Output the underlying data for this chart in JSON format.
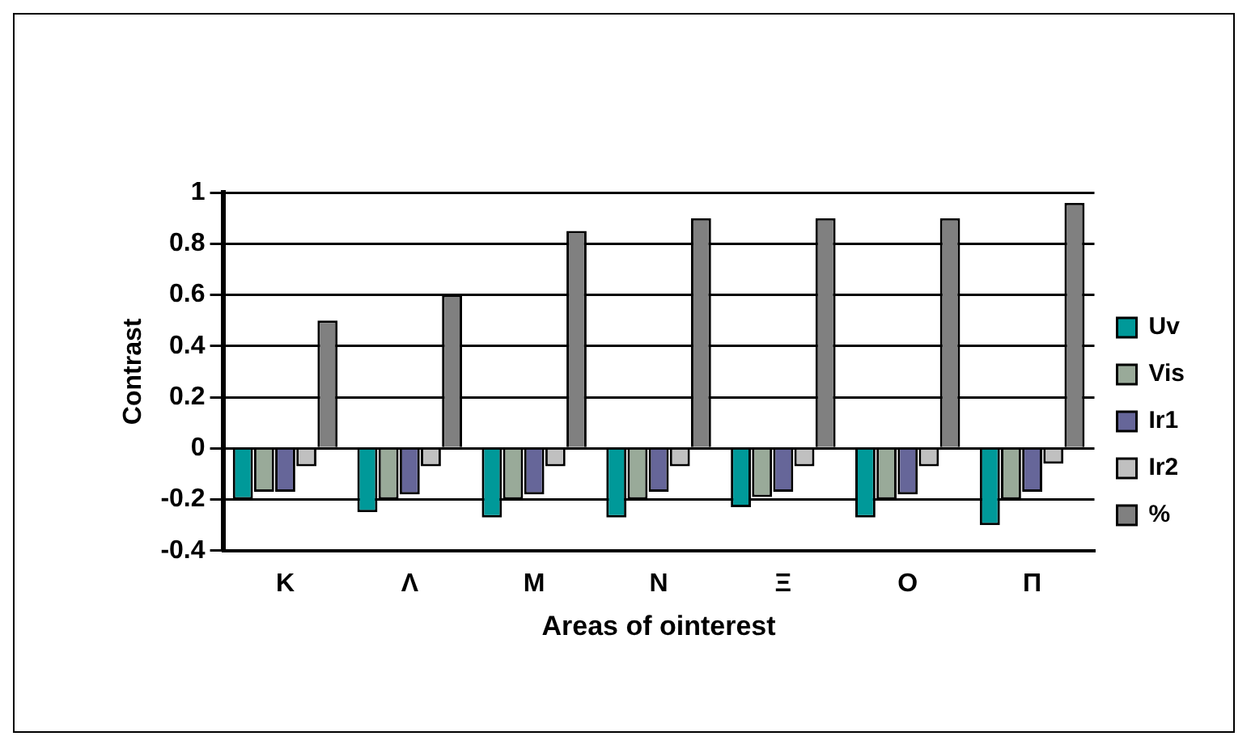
{
  "chart_data": {
    "type": "bar",
    "xlabel": "Areas of ointerest",
    "ylabel": "Contrast",
    "categories": [
      "Κ",
      "Λ",
      "Μ",
      "Ν",
      "Ξ",
      "Ο",
      "Π"
    ],
    "series": [
      {
        "name": "Uv",
        "color": "#009999",
        "values": [
          -0.2,
          -0.25,
          -0.27,
          -0.27,
          -0.23,
          -0.27,
          -0.3
        ]
      },
      {
        "name": "Vis",
        "color": "#99aa99",
        "values": [
          -0.17,
          -0.2,
          -0.2,
          -0.2,
          -0.19,
          -0.2,
          -0.2
        ]
      },
      {
        "name": "Ir1",
        "color": "#666699",
        "values": [
          -0.17,
          -0.18,
          -0.18,
          -0.17,
          -0.17,
          -0.18,
          -0.17
        ]
      },
      {
        "name": "Ir2",
        "color": "#c0c0c0",
        "values": [
          -0.07,
          -0.07,
          -0.07,
          -0.07,
          -0.07,
          -0.07,
          -0.06
        ]
      },
      {
        "name": "%",
        "color": "#808080",
        "values": [
          0.5,
          0.6,
          0.85,
          0.9,
          0.9,
          0.9,
          0.96
        ]
      }
    ],
    "ylim": [
      -0.4,
      1
    ],
    "yticks": [
      -0.4,
      -0.2,
      0,
      0.2,
      0.4,
      0.6,
      0.8,
      1
    ],
    "grid": "y",
    "legend": "right"
  }
}
